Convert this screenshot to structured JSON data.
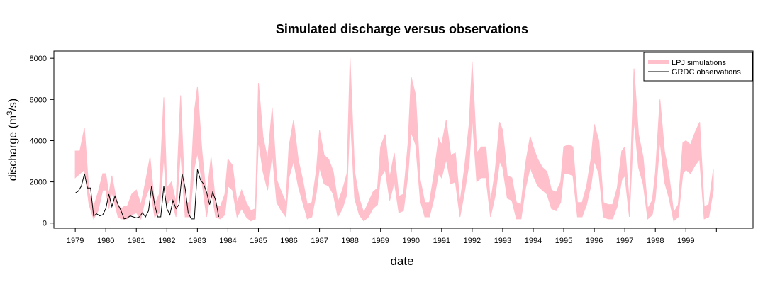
{
  "chart_data": {
    "type": "area",
    "title": "Simulated discharge versus observations",
    "xlabel": "date",
    "ylabel_main": "discharge (m",
    "ylabel_sup": "3",
    "ylabel_tail": "/s)",
    "xlim": [
      1978.3,
      2001.2
    ],
    "ylim": [
      -250,
      8350
    ],
    "yticks": [
      0,
      2000,
      4000,
      6000,
      8000
    ],
    "xtick_years": [
      "1979",
      "1980",
      "1981",
      "1982",
      "1983",
      "1984",
      "1985",
      "1986",
      "1987",
      "1988",
      "1989",
      "1990",
      "1991",
      "1992",
      "1993",
      "1994",
      "1995",
      "1996",
      "1997",
      "1998",
      "1999"
    ],
    "legend_position": "top-right",
    "legend": [
      {
        "label": "LPJ simulations",
        "kind": "band"
      },
      {
        "label": "GRDC observations",
        "kind": "line"
      }
    ],
    "colors": {
      "simulation_band": "#ffc0cb",
      "observation_line": "#000000"
    },
    "series": [
      {
        "name": "LPJ simulations",
        "kind": "band",
        "x": [
          1979.0,
          1979.15,
          1979.3,
          1979.45,
          1979.6,
          1979.75,
          1979.9,
          1980.0,
          1980.1,
          1980.2,
          1980.3,
          1980.4,
          1980.5,
          1980.6,
          1980.7,
          1980.85,
          1981.0,
          1981.15,
          1981.3,
          1981.45,
          1981.6,
          1981.75,
          1981.9,
          1982.0,
          1982.15,
          1982.3,
          1982.45,
          1982.6,
          1982.75,
          1982.9,
          1983.0,
          1983.15,
          1983.3,
          1983.45,
          1983.6,
          1983.75,
          1983.9,
          1984.0,
          1984.15,
          1984.3,
          1984.45,
          1984.6,
          1984.75,
          1984.9,
          1985.0,
          1985.15,
          1985.3,
          1985.45,
          1985.6,
          1985.75,
          1985.9,
          1986.0,
          1986.15,
          1986.3,
          1986.45,
          1986.6,
          1986.75,
          1986.9,
          1987.0,
          1987.15,
          1987.3,
          1987.45,
          1987.6,
          1987.75,
          1987.9,
          1988.0,
          1988.15,
          1988.3,
          1988.45,
          1988.6,
          1988.75,
          1988.9,
          1989.0,
          1989.15,
          1989.3,
          1989.45,
          1989.6,
          1989.75,
          1989.9,
          1990.0,
          1990.15,
          1990.3,
          1990.45,
          1990.6,
          1990.75,
          1990.9,
          1991.0,
          1991.15,
          1991.3,
          1991.45,
          1991.6,
          1991.75,
          1991.9,
          1992.0,
          1992.15,
          1992.3,
          1992.45,
          1992.6,
          1992.75,
          1992.9,
          1993.0,
          1993.15,
          1993.3,
          1993.45,
          1993.6,
          1993.75,
          1993.9,
          1994.0,
          1994.15,
          1994.3,
          1994.45,
          1994.6,
          1994.75,
          1994.9,
          1995.0,
          1995.15,
          1995.3,
          1995.45,
          1995.6,
          1995.75,
          1995.9,
          1996.0,
          1996.15,
          1996.3,
          1996.45,
          1996.6,
          1996.75,
          1996.9,
          1997.0,
          1997.15,
          1997.3,
          1997.45,
          1997.6,
          1997.75,
          1997.9,
          1998.0,
          1998.15,
          1998.3,
          1998.45,
          1998.6,
          1998.75,
          1998.9,
          1999.0,
          1999.15,
          1999.3,
          1999.45,
          1999.6,
          1999.75,
          1999.9
        ],
        "upper": [
          3500,
          3500,
          4600,
          1500,
          800,
          1500,
          2400,
          2400,
          1400,
          2300,
          1500,
          900,
          700,
          800,
          800,
          1400,
          1600,
          900,
          2000,
          3200,
          900,
          1400,
          6100,
          1700,
          2000,
          1000,
          6200,
          1000,
          1000,
          5400,
          6600,
          3500,
          1200,
          3200,
          900,
          800,
          1400,
          3100,
          2800,
          1000,
          1600,
          1000,
          600,
          700,
          6800,
          4200,
          3100,
          5600,
          2100,
          1500,
          1000,
          3700,
          5000,
          3100,
          2100,
          900,
          1000,
          2600,
          4500,
          3300,
          3100,
          2500,
          1000,
          1600,
          2400,
          8000,
          2500,
          1200,
          500,
          1000,
          1500,
          1700,
          3700,
          4300,
          2200,
          3400,
          1300,
          1400,
          3900,
          7100,
          6200,
          2100,
          1000,
          1000,
          2400,
          4100,
          3800,
          5000,
          3300,
          3400,
          1000,
          2700,
          4800,
          7800,
          3400,
          3700,
          3700,
          1000,
          2500,
          4900,
          4500,
          2300,
          2200,
          1000,
          900,
          2900,
          4200,
          3700,
          3100,
          2700,
          2500,
          1600,
          1500,
          2000,
          3700,
          3800,
          3700,
          1000,
          1000,
          1800,
          3200,
          4800,
          4000,
          1000,
          900,
          900,
          1700,
          3500,
          3700,
          1000,
          7500,
          4300,
          3200,
          700,
          1100,
          2400,
          6000,
          3500,
          2300,
          500,
          900,
          3900,
          4000,
          3800,
          4400,
          4900,
          800,
          900,
          2600
        ],
        "lower": [
          2200,
          2400,
          2600,
          900,
          200,
          600,
          1600,
          1600,
          700,
          1500,
          900,
          300,
          200,
          200,
          200,
          400,
          500,
          200,
          1200,
          1800,
          300,
          500,
          3200,
          900,
          1200,
          300,
          3500,
          300,
          300,
          2700,
          3400,
          2000,
          300,
          1600,
          300,
          200,
          400,
          1800,
          1600,
          300,
          700,
          300,
          100,
          200,
          4000,
          2500,
          1600,
          3400,
          1000,
          600,
          300,
          2200,
          3000,
          1800,
          1000,
          200,
          300,
          1500,
          2700,
          1900,
          1800,
          1400,
          300,
          700,
          1400,
          5400,
          1200,
          400,
          100,
          300,
          700,
          900,
          2200,
          2600,
          1100,
          2000,
          500,
          600,
          2400,
          4400,
          3800,
          1100,
          300,
          300,
          1200,
          2400,
          2200,
          3100,
          1900,
          2000,
          300,
          1500,
          2900,
          5200,
          2000,
          2200,
          2200,
          300,
          1300,
          3000,
          2700,
          1200,
          1100,
          200,
          200,
          1700,
          2700,
          2300,
          1800,
          1600,
          1400,
          700,
          600,
          1000,
          2400,
          2400,
          2300,
          300,
          300,
          900,
          1900,
          3000,
          2400,
          300,
          200,
          200,
          800,
          2100,
          2300,
          300,
          5000,
          2700,
          1900,
          200,
          400,
          1200,
          4000,
          2000,
          1200,
          100,
          300,
          2400,
          2600,
          2400,
          2800,
          3100,
          200,
          300,
          1600
        ]
      },
      {
        "name": "GRDC observations",
        "kind": "line",
        "x": [
          1979.0,
          1979.1,
          1979.2,
          1979.3,
          1979.4,
          1979.5,
          1979.6,
          1979.7,
          1979.8,
          1979.9,
          1980.0,
          1980.1,
          1980.2,
          1980.3,
          1980.4,
          1980.5,
          1980.6,
          1980.7,
          1980.8,
          1980.9,
          1981.0,
          1981.1,
          1981.2,
          1981.3,
          1981.4,
          1981.5,
          1981.6,
          1981.7,
          1981.8,
          1981.9,
          1982.0,
          1982.1,
          1982.2,
          1982.3,
          1982.4,
          1982.5,
          1982.6,
          1982.7,
          1982.8,
          1982.9,
          1983.0,
          1983.1,
          1983.2,
          1983.3,
          1983.4,
          1983.5,
          1983.6,
          1983.7
        ],
        "values": [
          1450,
          1550,
          1800,
          2400,
          1700,
          1700,
          350,
          450,
          350,
          400,
          700,
          1400,
          800,
          1300,
          900,
          600,
          200,
          250,
          350,
          300,
          250,
          300,
          500,
          300,
          600,
          1800,
          900,
          300,
          300,
          1800,
          700,
          400,
          1100,
          700,
          900,
          2400,
          1700,
          500,
          200,
          200,
          2600,
          2100,
          1900,
          1500,
          900,
          1500,
          1100,
          300
        ]
      }
    ]
  }
}
